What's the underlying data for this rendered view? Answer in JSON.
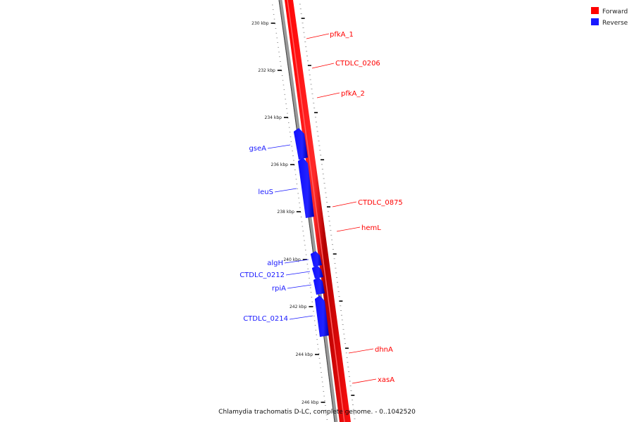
{
  "colors": {
    "forward": "#ff0000",
    "reverse": "#1a1aff",
    "backbone": "#888888"
  },
  "legend": [
    {
      "label": "Forward",
      "color": "#ff0000"
    },
    {
      "label": "Reverse",
      "color": "#1a1aff"
    }
  ],
  "ticks": [
    "230 kbp",
    "232 kbp",
    "234 kbp",
    "236 kbp",
    "238 kbp",
    "240 kbp",
    "242 kbp",
    "244 kbp",
    "246 kbp"
  ],
  "forward_genes": [
    "pfkA_1",
    "CTDLC_0206",
    "pfkA_2",
    "CTDLC_0875",
    "hemL",
    "dhnA",
    "xasA"
  ],
  "reverse_genes": [
    "gseA",
    "leuS",
    "algH",
    "CTDLC_0212",
    "rpiA",
    "CTDLC_0214"
  ],
  "caption": "Chlamydia trachomatis D-LC, complete genome. - 0..1042520"
}
